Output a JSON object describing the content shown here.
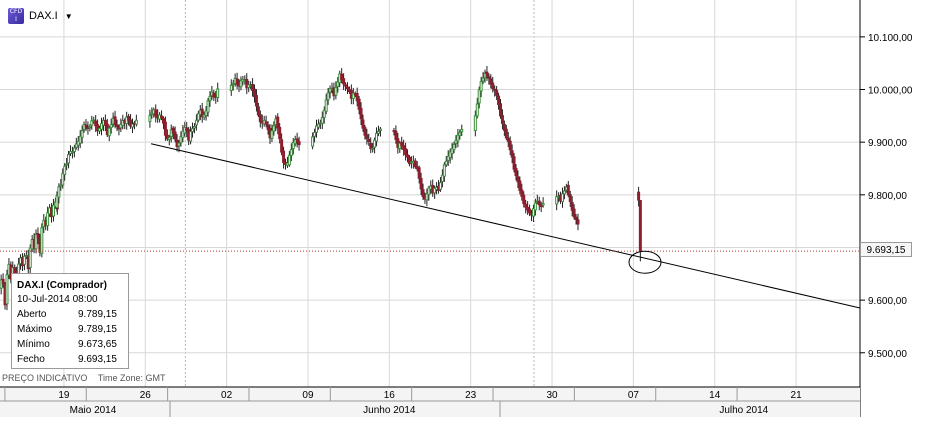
{
  "header": {
    "symbol": "DAX.I",
    "icon": "cfd-icon",
    "icon_text_top": "CFD",
    "icon_text_bottom": "I"
  },
  "info_box": {
    "title": "DAX.I (Comprador)",
    "datetime": "10-Jul-2014 08:00",
    "rows": [
      {
        "label": "Aberto",
        "value": "9.789,15"
      },
      {
        "label": "Máximo",
        "value": "9.789,15"
      },
      {
        "label": "Mínimo",
        "value": "9.673,65"
      },
      {
        "label": "Fecho",
        "value": "9.693,15"
      }
    ]
  },
  "footer": {
    "note": "PREÇO INDICATIVO",
    "timezone": "Time Zone: GMT"
  },
  "current_price_label": "9.693,15",
  "colors": {
    "bull": "#3b8e3b",
    "bear": "#8e1e2e",
    "price_line": "#c0392b",
    "trendline": "#000000",
    "grid": "#d8d8d8"
  },
  "chart_data": {
    "type": "candlestick",
    "title": "",
    "xlabel": "",
    "ylabel": "",
    "y_tick_labels": [
      "9.500,00",
      "9.600,00",
      "9.700,00",
      "9.800,00",
      "9.900,00",
      "10.000,00",
      "10.100,00"
    ],
    "y_tick_values": [
      9500,
      9600,
      9700,
      9800,
      9900,
      10000,
      10100
    ],
    "ylim": [
      9435,
      10170
    ],
    "x_tick_labels": [
      "19",
      "26",
      "02",
      "09",
      "16",
      "23",
      "30",
      "07",
      "14",
      "21"
    ],
    "x_tick_days": [
      0,
      7,
      14,
      21,
      28,
      35,
      42,
      49,
      56,
      63
    ],
    "xlim_days": [
      -5.5,
      68.5
    ],
    "month_labels": [
      {
        "label": "Maio 2014",
        "center_day": 2.5
      },
      {
        "label": "Junho 2014",
        "center_day": 28.0
      },
      {
        "label": "Julho 2014",
        "center_day": 58.5
      }
    ],
    "month_boundaries_days": [
      12,
      42
    ],
    "grid": true,
    "current_price": 9693.15,
    "trendline": {
      "start": {
        "day": 7.5,
        "value": 9897
      },
      "end": {
        "day": 68.5,
        "value": 9585
      }
    },
    "highlight_circle": {
      "day": 50.0,
      "value": 9672
    },
    "candles_per_day": 6,
    "series": [
      {
        "day": -5.4,
        "path": [
          9620,
          9650,
          9590,
          9680,
          9640
        ]
      },
      {
        "day": -4.4,
        "path": [
          9640,
          9670,
          9620,
          9690,
          9665
        ]
      },
      {
        "day": -3.4,
        "path": [
          9665,
          9695,
          9660,
          9720,
          9700
        ]
      },
      {
        "day": -2.4,
        "path": [
          9700,
          9735,
          9690,
          9760,
          9740
        ]
      },
      {
        "day": -1.4,
        "path": [
          9740,
          9780,
          9760,
          9790,
          9775
        ]
      },
      {
        "day": -0.6,
        "path": [
          9775,
          9810,
          9820,
          9850,
          9860
        ]
      },
      {
        "day": 0.4,
        "path": [
          9860,
          9885,
          9880,
          9895,
          9900
        ]
      },
      {
        "day": 1.4,
        "path": [
          9900,
          9915,
          9935,
          9925,
          9930
        ]
      },
      {
        "day": 2.4,
        "path": [
          9930,
          9948,
          9930,
          9920,
          9935
        ]
      },
      {
        "day": 3.4,
        "path": [
          9935,
          9942,
          9915,
          9930,
          9945
        ]
      },
      {
        "day": 4.4,
        "path": [
          9945,
          9930,
          9925,
          9940,
          9938
        ]
      },
      {
        "day": 5.4,
        "path": [
          9938,
          9950,
          9930,
          9935,
          9940
        ]
      },
      {
        "day": 7.4,
        "path": [
          9940,
          9955,
          9960,
          9945,
          9950
        ]
      },
      {
        "day": 8.4,
        "path": [
          9950,
          9945,
          9915,
          9900,
          9925
        ]
      },
      {
        "day": 9.4,
        "path": [
          9925,
          9915,
          9890,
          9905,
          9920
        ]
      },
      {
        "day": 10.4,
        "path": [
          9920,
          9930,
          9905,
          9925,
          9930
        ]
      },
      {
        "day": 11.4,
        "path": [
          9930,
          9950,
          9960,
          9945,
          9960
        ]
      },
      {
        "day": 12.4,
        "path": [
          9960,
          9985,
          9995,
          9980,
          10000
        ]
      },
      {
        "day": 14.4,
        "path": [
          10000,
          10010,
          10020,
          10005,
          10015
        ]
      },
      {
        "day": 15.4,
        "path": [
          10015,
          10022,
          10005,
          10010,
          10000
        ]
      },
      {
        "day": 16.4,
        "path": [
          10000,
          9980,
          9950,
          9935,
          9940
        ]
      },
      {
        "day": 17.4,
        "path": [
          9940,
          9930,
          9910,
          9925,
          9945
        ]
      },
      {
        "day": 18.4,
        "path": [
          9945,
          9920,
          9880,
          9855,
          9860
        ]
      },
      {
        "day": 19.4,
        "path": [
          9860,
          9880,
          9900,
          9905,
          9895
        ]
      },
      {
        "day": 21.4,
        "path": [
          9895,
          9915,
          9930,
          9935,
          9945
        ]
      },
      {
        "day": 22.4,
        "path": [
          9945,
          9970,
          9995,
          10005,
          9990
        ]
      },
      {
        "day": 23.4,
        "path": [
          9990,
          10010,
          10028,
          10015,
          10005
        ]
      },
      {
        "day": 24.4,
        "path": [
          10005,
          10000,
          9985,
          9995,
          9980
        ]
      },
      {
        "day": 25.4,
        "path": [
          9980,
          9955,
          9925,
          9910,
          9900
        ]
      },
      {
        "day": 26.4,
        "path": [
          9900,
          9880,
          9905,
          9920,
          9925
        ]
      },
      {
        "day": 28.4,
        "path": [
          9925,
          9915,
          9890,
          9900,
          9885
        ]
      },
      {
        "day": 29.4,
        "path": [
          9885,
          9875,
          9860,
          9865,
          9855
        ]
      },
      {
        "day": 30.4,
        "path": [
          9855,
          9845,
          9810,
          9790,
          9800
        ]
      },
      {
        "day": 31.4,
        "path": [
          9800,
          9820,
          9805,
          9815,
          9810
        ]
      },
      {
        "day": 32.4,
        "path": [
          9810,
          9830,
          9855,
          9870,
          9880
        ]
      },
      {
        "day": 33.4,
        "path": [
          9880,
          9890,
          9905,
          9915,
          9925
        ]
      },
      {
        "day": 35.4,
        "path": [
          9925,
          9960,
          10000,
          10020,
          10030
        ]
      },
      {
        "day": 36.4,
        "path": [
          10030,
          10025,
          10010,
          10000,
          9990
        ]
      },
      {
        "day": 37.4,
        "path": [
          9990,
          9960,
          9935,
          9915,
          9900
        ]
      },
      {
        "day": 38.4,
        "path": [
          9900,
          9880,
          9850,
          9830,
          9810
        ]
      },
      {
        "day": 39.4,
        "path": [
          9810,
          9790,
          9775,
          9770,
          9760
        ]
      },
      {
        "day": 40.4,
        "path": [
          9760,
          9780,
          9790,
          9775,
          9785
        ]
      },
      {
        "day": 42.4,
        "path": [
          9785,
          9800,
          9790,
          9805,
          9815
        ]
      },
      {
        "day": 43.4,
        "path": [
          9815,
          9795,
          9770,
          9755,
          9745
        ]
      }
    ],
    "candles": [
      {
        "o": 9635,
        "h": 9680,
        "l": 9595,
        "c": 9660
      },
      {
        "o": 9660,
        "h": 9700,
        "l": 9640,
        "c": 9690
      }
    ]
  }
}
